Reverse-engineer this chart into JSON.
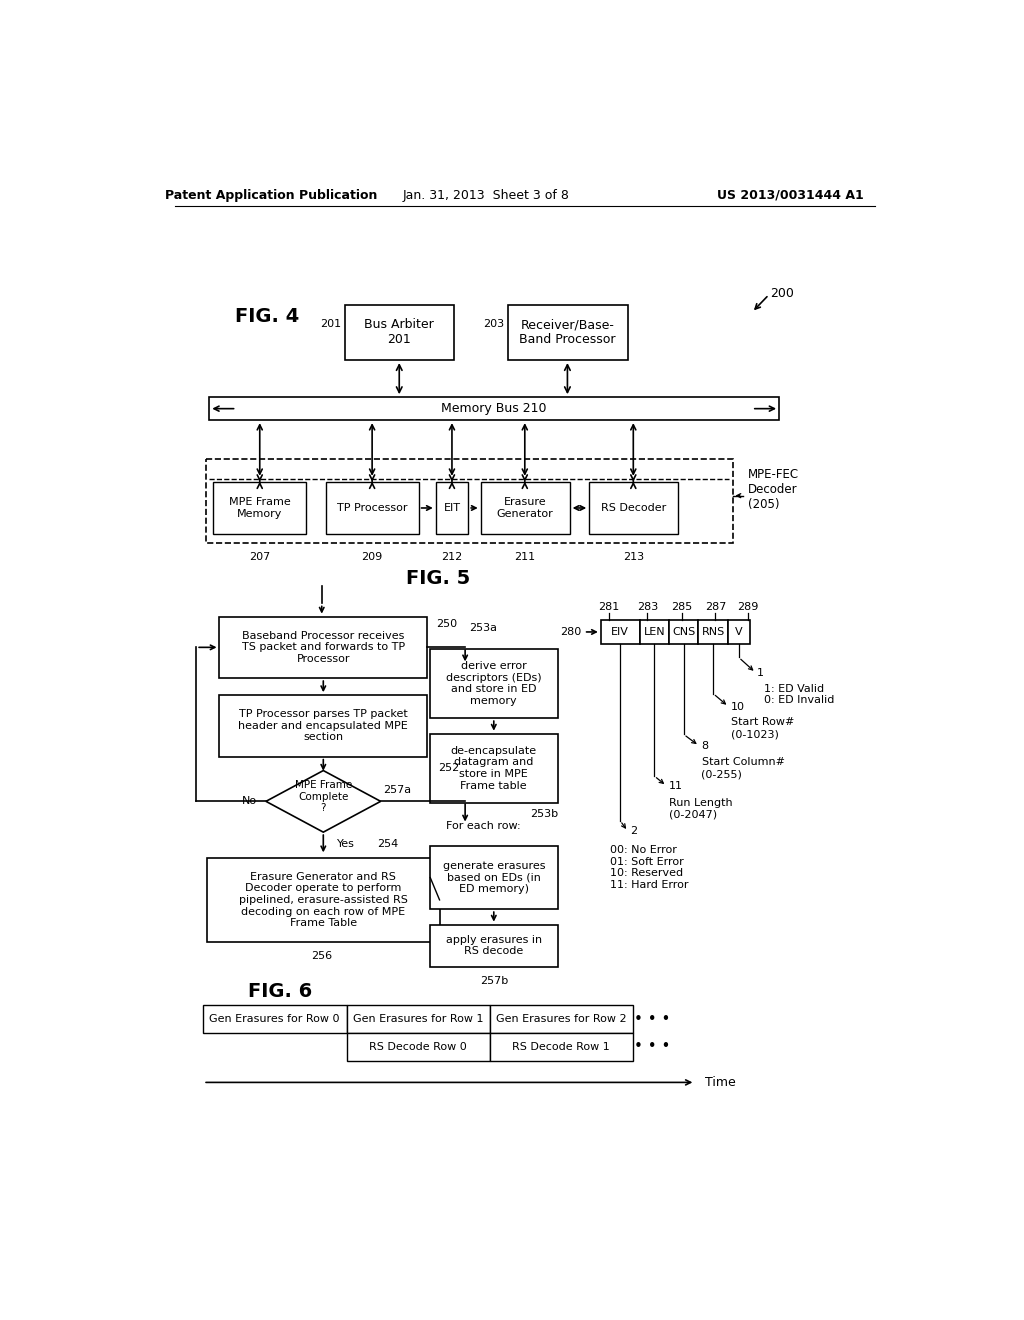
{
  "header_left": "Patent Application Publication",
  "header_center": "Jan. 31, 2013  Sheet 3 of 8",
  "header_right": "US 2013/0031444 A1",
  "bg_color": "#ffffff",
  "fig4_label": "FIG. 4",
  "fig5_label": "FIG. 5",
  "fig6_label": "FIG. 6",
  "ref_200": "200",
  "ref_201": "201",
  "ref_203": "203",
  "ref_207": "207",
  "ref_209": "209",
  "ref_210": "Memory Bus 210",
  "ref_211": "211",
  "ref_212": "212",
  "ref_213": "213",
  "box_bus_arbiter": "Bus Arbiter\n201",
  "box_receiver": "Receiver/Base-\nBand Processor",
  "box_mpe_frame": "MPE Frame\nMemory",
  "box_tp_proc": "TP Processor",
  "box_eit": "EIT",
  "box_erasure_gen": "Erasure\nGenerator",
  "box_rs_decoder": "RS Decoder",
  "label_mpefec": "MPE-FEC\nDecoder\n(205)",
  "flow_box1": "Baseband Processor receives\nTS packet and forwards to TP\nProcessor",
  "flow_box2": "TP Processor parses TP packet\nheader and encapsulated MPE\nsection",
  "flow_diamond": "MPE Frame\nComplete\n?",
  "flow_no": "No",
  "flow_yes": "Yes",
  "flow_box4": "Erasure Generator and RS\nDecoder operate to perform\npipelined, erasure-assisted RS\ndecoding on each row of MPE\nFrame Table",
  "flow_box_ed": "derive error\ndescriptors (EDs)\nand store in ED\nmemory",
  "flow_box_deencap": "de-encapsulate\ndatagram and\nstore in MPE\nFrame table",
  "flow_box_gen_erasures": "generate erasures\nbased on EDs (in\nED memory)",
  "flow_box_apply": "apply erasures in\nRS decode",
  "ref_250": "250",
  "ref_252": "252",
  "ref_253a": "253a",
  "ref_253b": "253b",
  "ref_254": "254",
  "ref_256": "256",
  "ref_257a": "257a",
  "ref_257b": "257b",
  "for_each_row": "For each row:",
  "ref_280": "280",
  "ref_281": "281",
  "ref_283": "283",
  "ref_285": "285",
  "ref_287": "287",
  "ref_289": "289",
  "field_eiv": "EIV",
  "field_len": "LEN",
  "field_cns": "CNS",
  "field_rns": "RNS",
  "field_v": "V",
  "bit1_label": "1",
  "bit1_text": "1: ED Valid\n0: ED Invalid",
  "bit10_label": "10",
  "bit10_text": "Start Row#\n(0-1023)",
  "bit8_label": "8",
  "bit8_text": "Start Column#\n(0-255)",
  "bit11_label": "11",
  "bit11_text": "Run Length\n(0-2047)",
  "bit2_label": "2",
  "bit2_text": "00: No Error\n01: Soft Error\n10: Reserved\n11: Hard Error",
  "pipe_row1_col1": "Gen Erasures for Row 0",
  "pipe_row1_col2": "Gen Erasures for Row 1",
  "pipe_row1_col3": "Gen Erasures for Row 2",
  "pipe_row2_col2": "RS Decode Row 0",
  "pipe_row2_col3": "RS Decode Row 1",
  "pipe_time_label": "Time"
}
